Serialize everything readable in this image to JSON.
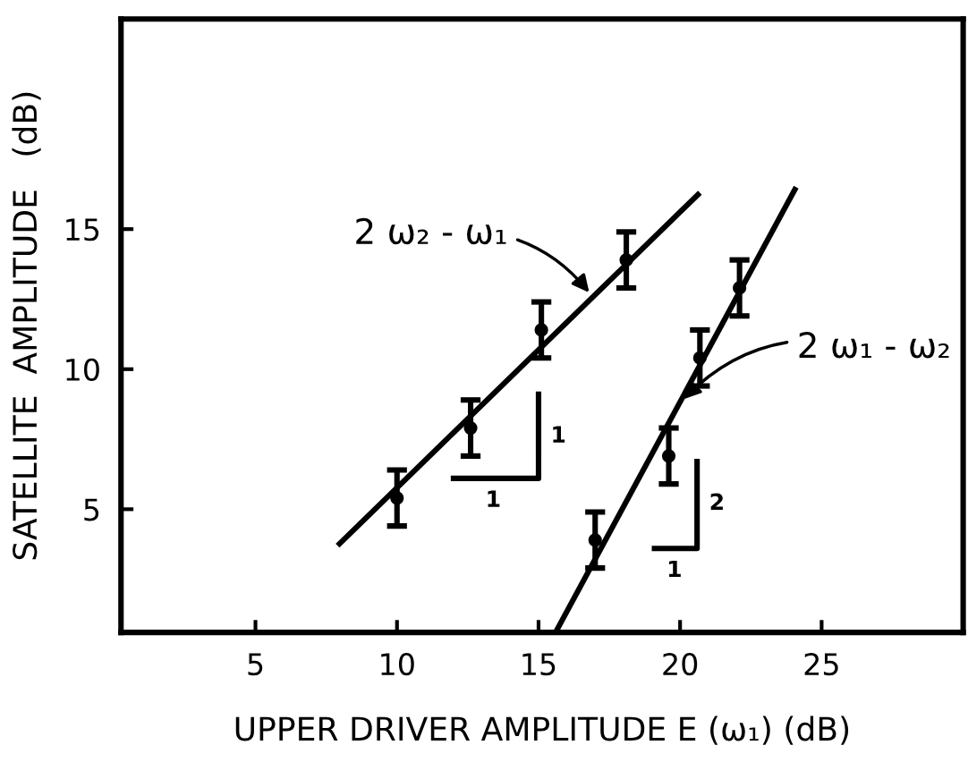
{
  "chart_data": {
    "type": "scatter",
    "xlabel": "UPPER DRIVER AMPLITUDE E (ω₁) (dB)",
    "ylabel": "SATELLITE  AMPLITUDE   (dB)",
    "xlim": [
      0.25,
      30
    ],
    "ylim": [
      0.6,
      22.5
    ],
    "xticks": [
      5,
      10,
      15,
      20,
      25
    ],
    "yticks": [
      5,
      10,
      15
    ],
    "grid": false,
    "series": [
      {
        "marker": "circle",
        "color": "#000000",
        "x": [
          10.0,
          12.6,
          15.1,
          18.1
        ],
        "values": [
          5.4,
          7.9,
          11.4,
          13.9
        ],
        "errors": [
          1.0,
          1.0,
          1.0,
          1.0
        ]
      },
      {
        "marker": "circle",
        "color": "#000000",
        "x": [
          17.0,
          19.6,
          20.7,
          22.1
        ],
        "values": [
          3.9,
          6.9,
          10.4,
          12.9
        ],
        "errors": [
          1.0,
          1.0,
          1.0,
          1.0
        ]
      },
      {
        "type": "line",
        "color": "#000000",
        "x": [
          7.9,
          20.7
        ],
        "values": [
          3.7,
          16.3
        ]
      },
      {
        "type": "line",
        "color": "#000000",
        "x": [
          15.6,
          24.1
        ],
        "values": [
          0.6,
          16.5
        ]
      },
      {
        "type": "line",
        "color": "#000000",
        "x": [
          11.9,
          15.0,
          15.0
        ],
        "values": [
          6.1,
          6.1,
          9.2
        ]
      },
      {
        "type": "line",
        "color": "#000000",
        "x": [
          19.0,
          20.6,
          20.6
        ],
        "values": [
          3.6,
          3.6,
          6.8
        ]
      }
    ],
    "annotations": [
      {
        "text": "2 ω₂ - ω₁",
        "x": 16.9,
        "y": 12.6
      },
      {
        "text": "2 ω₁ - ω₂",
        "x": 20.0,
        "y": 8.8
      },
      {
        "text": "1",
        "x": 13.4,
        "y": 6.1
      },
      {
        "text": "1",
        "x": 15.0,
        "y": 7.6
      },
      {
        "text": "1",
        "x": 19.8,
        "y": 3.6
      },
      {
        "text": "2",
        "x": 20.6,
        "y": 5.2
      }
    ]
  }
}
